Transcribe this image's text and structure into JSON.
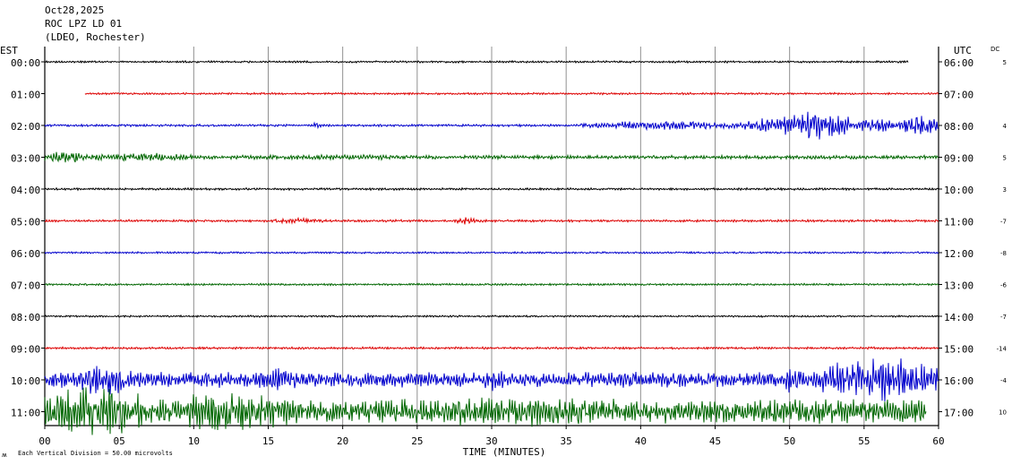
{
  "header": {
    "date": "Oct28,2025",
    "station": "ROC LPZ LD 01",
    "network": "(LDEO, Rochester)"
  },
  "labels": {
    "left_zone": "EST",
    "right_zone": "UTC",
    "dc": "DC",
    "xlabel": "TIME (MINUTES)",
    "footer_mark": "ʍ",
    "footer": "Each Vertical Division =   50.00 microvolts"
  },
  "colors": {
    "trace_cycle": [
      "#000000",
      "#dd0000",
      "#0000cc",
      "#006600"
    ],
    "grid": "#909090",
    "frame": "#000000"
  },
  "chart_data": {
    "type": "line",
    "title": "Oct28,2025",
    "xlabel": "TIME (MINUTES)",
    "xlim": [
      0,
      60
    ],
    "xticks": [
      "00",
      "05",
      "10",
      "15",
      "20",
      "25",
      "30",
      "35",
      "40",
      "45",
      "50",
      "55",
      "60"
    ],
    "grid": true,
    "rows": [
      {
        "est": "00:00",
        "utc": "06:00",
        "dc": "5",
        "start_min": 0,
        "end_min": 58,
        "amp": 1.2,
        "events": []
      },
      {
        "est": "01:00",
        "utc": "07:00",
        "dc": "",
        "start_min": 2.7,
        "end_min": 60,
        "amp": 1.2,
        "events": []
      },
      {
        "est": "02:00",
        "utc": "08:00",
        "dc": "4",
        "start_min": 0,
        "end_min": 60,
        "amp": 1.4,
        "events": [
          {
            "t0": 18,
            "t1": 18.6,
            "amp": 5
          },
          {
            "t0": 36,
            "t1": 47,
            "amp": 5
          },
          {
            "t0": 47,
            "t1": 50,
            "amp": 9
          },
          {
            "t0": 49.5,
            "t1": 54,
            "amp": 17
          },
          {
            "t0": 54,
            "t1": 57.5,
            "amp": 8
          },
          {
            "t0": 57.5,
            "t1": 60,
            "amp": 13
          }
        ]
      },
      {
        "est": "03:00",
        "utc": "09:00",
        "dc": "5",
        "start_min": 0,
        "end_min": 60,
        "amp": 2.2,
        "events": [
          {
            "t0": 0,
            "t1": 3,
            "amp": 8
          },
          {
            "t0": 3,
            "t1": 10,
            "amp": 5
          },
          {
            "t0": 10,
            "t1": 29,
            "amp": 3
          }
        ]
      },
      {
        "est": "04:00",
        "utc": "10:00",
        "dc": "3",
        "start_min": 0,
        "end_min": 60,
        "amp": 1.3,
        "events": []
      },
      {
        "est": "05:00",
        "utc": "11:00",
        "dc": "-7",
        "start_min": 0,
        "end_min": 60,
        "amp": 1.4,
        "events": [
          {
            "t0": 15,
            "t1": 19,
            "amp": 3
          },
          {
            "t0": 27.5,
            "t1": 29,
            "amp": 4
          }
        ]
      },
      {
        "est": "06:00",
        "utc": "12:00",
        "dc": "-8",
        "start_min": 0,
        "end_min": 60,
        "amp": 1.1,
        "events": []
      },
      {
        "est": "07:00",
        "utc": "13:00",
        "dc": "-6",
        "start_min": 0,
        "end_min": 60,
        "amp": 1.2,
        "events": []
      },
      {
        "est": "08:00",
        "utc": "14:00",
        "dc": "-7",
        "start_min": 0,
        "end_min": 60,
        "amp": 1.1,
        "events": []
      },
      {
        "est": "09:00",
        "utc": "15:00",
        "dc": "-14",
        "start_min": 0,
        "end_min": 60,
        "amp": 1.3,
        "events": []
      },
      {
        "est": "10:00",
        "utc": "16:00",
        "dc": "-4",
        "start_min": 0,
        "end_min": 60,
        "amp": 9,
        "events": [
          {
            "t0": 2,
            "t1": 6,
            "amp": 18
          },
          {
            "t0": 14,
            "t1": 17,
            "amp": 15
          },
          {
            "t0": 29.5,
            "t1": 31,
            "amp": 15
          },
          {
            "t0": 49.5,
            "t1": 51,
            "amp": 18
          },
          {
            "t0": 52,
            "t1": 60,
            "amp": 26
          }
        ]
      },
      {
        "est": "11:00",
        "utc": "17:00",
        "dc": "10",
        "start_min": 0,
        "end_min": 59.2,
        "amp": 14,
        "events": [
          {
            "t0": 0,
            "t1": 7,
            "amp": 30
          },
          {
            "t0": 7,
            "t1": 18,
            "amp": 22
          },
          {
            "t0": 18,
            "t1": 45,
            "amp": 17
          },
          {
            "t0": 45,
            "t1": 50,
            "amp": 9
          },
          {
            "t0": 50,
            "t1": 59.2,
            "amp": 4
          }
        ]
      }
    ]
  }
}
